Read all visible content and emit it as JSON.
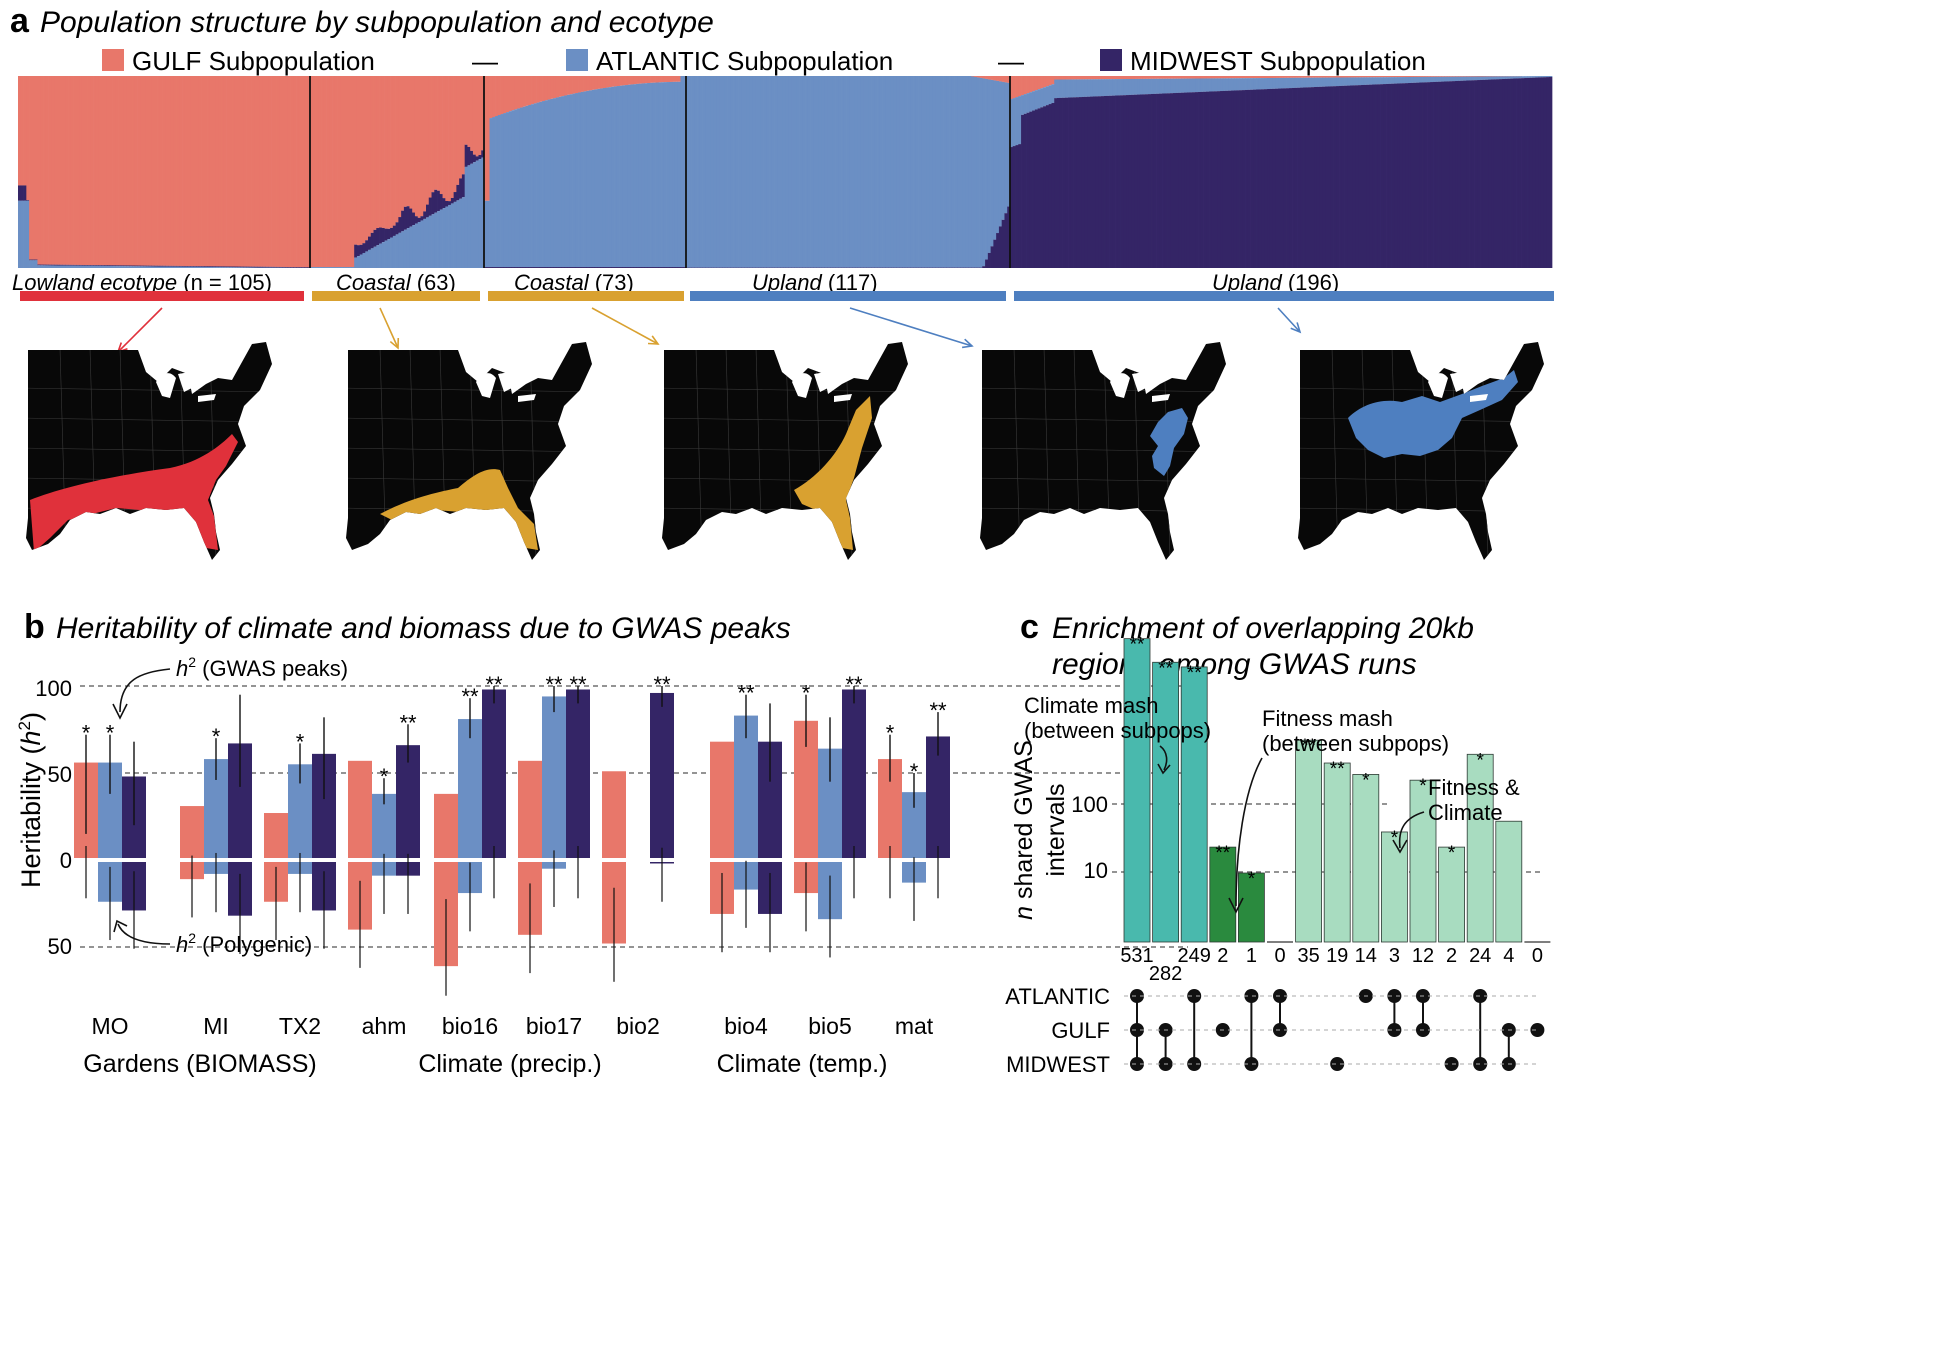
{
  "panel_a": {
    "letter": "a",
    "title": "Population structure by subpopulation and ecotype",
    "legend": [
      {
        "label": "GULF Subpopulation",
        "color": "#e8776a"
      },
      {
        "label": "ATLANTIC Subpopulation",
        "color": "#6b8fc4"
      },
      {
        "label": "MIDWEST Subpopulation",
        "color": "#342566"
      }
    ],
    "legend_separator": "—",
    "groups": [
      {
        "ecotype": "Lowland ecotype",
        "count_text": "(n = 105)",
        "color": "#e0313b",
        "map_region": "lowland"
      },
      {
        "ecotype": "Coastal",
        "count_text": "(63)",
        "color": "#d9a130",
        "map_region": "coastal-gulf"
      },
      {
        "ecotype": "Coastal",
        "count_text": "(73)",
        "color": "#d9a130",
        "map_region": "coastal-atlantic"
      },
      {
        "ecotype": "Upland",
        "count_text": "(117)",
        "color": "#4e7fc0",
        "map_region": "upland-atlantic"
      },
      {
        "ecotype": "Upland",
        "count_text": "(196)",
        "color": "#4e7fc0",
        "map_region": "upland-midwest"
      }
    ]
  },
  "panel_b": {
    "letter": "b",
    "title": "Heritability of climate and biomass due to GWAS peaks",
    "y_label_prefix": "Heritability (",
    "y_label_h": "h",
    "y_label_sup": "2",
    "y_label_suffix": ")",
    "top_ticks": [
      "100",
      "50",
      "0"
    ],
    "bottom_ticks": [
      "50"
    ],
    "annot_top": {
      "h": "h",
      "sup": "2",
      "text": " (GWAS peaks)"
    },
    "annot_bottom": {
      "h": "h",
      "sup": "2",
      "text": " (Polygenic)"
    },
    "group_labels": [
      "Gardens (BIOMASS)",
      "Climate (precip.)",
      "Climate (temp.)"
    ],
    "chart_data": {
      "type": "bar",
      "ylabel": "Heritability (h2)",
      "ylim_top": [
        0,
        100
      ],
      "ylim_bottom": [
        0,
        50
      ],
      "series_colors": {
        "GULF": "#e8776a",
        "ATLANTIC": "#6b8fc4",
        "MIDWEST": "#342566"
      },
      "categories": [
        "MO",
        "MI",
        "TX2",
        "ahm",
        "bio16",
        "bio17",
        "bio2",
        "bio4",
        "bio5",
        "mat"
      ],
      "traits": [
        {
          "name": "MO",
          "bars": [
            {
              "pop": "GULF",
              "top": 56,
              "bottom": 0,
              "err": [
                15,
                72
              ],
              "stars": "*"
            },
            {
              "pop": "ATLANTIC",
              "top": 56,
              "bottom": 24,
              "err": [
                38,
                72
              ],
              "stars": "*"
            },
            {
              "pop": "MIDWEST",
              "top": 48,
              "bottom": 29,
              "err": [
                20,
                68
              ],
              "stars": ""
            }
          ]
        },
        {
          "name": "MI",
          "bars": [
            {
              "pop": "GULF",
              "top": 31,
              "bottom": 11,
              "err": [],
              "stars": ""
            },
            {
              "pop": "ATLANTIC",
              "top": 58,
              "bottom": 8,
              "err": [
                46,
                70
              ],
              "stars": "*"
            },
            {
              "pop": "MIDWEST",
              "top": 67,
              "bottom": 32,
              "err": [
                42,
                95
              ],
              "stars": ""
            }
          ]
        },
        {
          "name": "TX2",
          "bars": [
            {
              "pop": "GULF",
              "top": 27,
              "bottom": 24,
              "err": [],
              "stars": ""
            },
            {
              "pop": "ATLANTIC",
              "top": 55,
              "bottom": 8,
              "err": [
                44,
                67
              ],
              "stars": "*"
            },
            {
              "pop": "MIDWEST",
              "top": 61,
              "bottom": 29,
              "err": [
                35,
                82
              ],
              "stars": ""
            }
          ]
        },
        {
          "name": "ahm",
          "bars": [
            {
              "pop": "GULF",
              "top": 57,
              "bottom": 40,
              "err": [],
              "stars": ""
            },
            {
              "pop": "ATLANTIC",
              "top": 38,
              "bottom": 9,
              "err": [
                32,
                47
              ],
              "stars": "*"
            },
            {
              "pop": "MIDWEST",
              "top": 66,
              "bottom": 9,
              "err": [
                56,
                78
              ],
              "stars": "**"
            }
          ]
        },
        {
          "name": "bio16",
          "bars": [
            {
              "pop": "GULF",
              "top": 38,
              "bottom": 61,
              "err": [],
              "stars": ""
            },
            {
              "pop": "ATLANTIC",
              "top": 81,
              "bottom": 19,
              "err": [
                70,
                93
              ],
              "stars": "**"
            },
            {
              "pop": "MIDWEST",
              "top": 98,
              "bottom": 0,
              "err": [
                90,
                100
              ],
              "stars": "**"
            }
          ]
        },
        {
          "name": "bio17",
          "bars": [
            {
              "pop": "GULF",
              "top": 57,
              "bottom": 43,
              "err": [],
              "stars": ""
            },
            {
              "pop": "ATLANTIC",
              "top": 94,
              "bottom": 5,
              "err": [
                85,
                100
              ],
              "stars": "**"
            },
            {
              "pop": "MIDWEST",
              "top": 98,
              "bottom": 0,
              "err": [
                90,
                100
              ],
              "stars": "**"
            }
          ]
        },
        {
          "name": "bio2",
          "bars": [
            {
              "pop": "GULF",
              "top": 51,
              "bottom": 48,
              "err": [],
              "stars": ""
            },
            {
              "pop": "ATLANTIC",
              "top": 0,
              "bottom": 0,
              "err": [],
              "stars": ""
            },
            {
              "pop": "MIDWEST",
              "top": 96,
              "bottom": 2,
              "err": [
                88,
                100
              ],
              "stars": "**"
            }
          ]
        },
        {
          "name": "bio4",
          "bars": [
            {
              "pop": "GULF",
              "top": 68,
              "bottom": 31,
              "err": [],
              "stars": ""
            },
            {
              "pop": "ATLANTIC",
              "top": 83,
              "bottom": 17,
              "err": [
                70,
                95
              ],
              "stars": "**"
            },
            {
              "pop": "MIDWEST",
              "top": 68,
              "bottom": 31,
              "err": [
                45,
                90
              ],
              "stars": ""
            }
          ]
        },
        {
          "name": "bio5",
          "bars": [
            {
              "pop": "GULF",
              "top": 80,
              "bottom": 19,
              "err": [
                65,
                95
              ],
              "stars": "*"
            },
            {
              "pop": "ATLANTIC",
              "top": 64,
              "bottom": 34,
              "err": [
                45,
                82
              ],
              "stars": ""
            },
            {
              "pop": "MIDWEST",
              "top": 98,
              "bottom": 0,
              "err": [
                90,
                100
              ],
              "stars": "**"
            }
          ]
        },
        {
          "name": "mat",
          "bars": [
            {
              "pop": "GULF",
              "top": 58,
              "bottom": 0,
              "err": [
                45,
                72
              ],
              "stars": "*"
            },
            {
              "pop": "ATLANTIC",
              "top": 39,
              "bottom": 13,
              "err": [
                30,
                50
              ],
              "stars": "*"
            },
            {
              "pop": "MIDWEST",
              "top": 71,
              "bottom": 0,
              "err": [
                60,
                85
              ],
              "stars": "**"
            }
          ]
        }
      ]
    }
  },
  "panel_c": {
    "letter": "c",
    "title_line1": "Enrichment of overlapping 20kb",
    "title_line2": "regions among GWAS runs",
    "y_label_italic": "n",
    "y_label_line1": " shared GWAS",
    "y_label_line2": "intervals",
    "y_ticks": [
      "100",
      "10"
    ],
    "annot_climate": [
      "Climate mash",
      "(between subpops)"
    ],
    "annot_fitness": [
      "Fitness mash",
      "(between subpops)"
    ],
    "annot_both": [
      "Fitness &",
      "Climate"
    ],
    "set_names": [
      "ATLANTIC",
      "GULF",
      "MIDWEST"
    ],
    "chart_data": {
      "type": "bar",
      "yscale": "log",
      "categories": [
        "1",
        "2",
        "3",
        "4",
        "5",
        "6",
        "7",
        "8",
        "9",
        "10",
        "11",
        "12",
        "13",
        "14",
        "15"
      ],
      "values": [
        531,
        282,
        249,
        2,
        1,
        0,
        35,
        19,
        14,
        3,
        12,
        2,
        24,
        4,
        0
      ],
      "value_labels": [
        "531",
        "282",
        "249",
        "2",
        "1",
        "0",
        "35",
        "19",
        "14",
        "3",
        "12",
        "2",
        "24",
        "4",
        "0"
      ],
      "stars": [
        "**",
        "**",
        "**",
        "**",
        "*",
        "",
        "**",
        "**",
        "*",
        "*",
        "*",
        "*",
        "*",
        "",
        ""
      ],
      "colors": [
        "#49b9ad",
        "#49b9ad",
        "#49b9ad",
        "#2a8a3e",
        "#2a8a3e",
        "#2a8a3e",
        "#a8dcc0",
        "#a8dcc0",
        "#a8dcc0",
        "#a8dcc0",
        "#a8dcc0",
        "#a8dcc0",
        "#a8dcc0",
        "#a8dcc0",
        "#a8dcc0"
      ],
      "membership": [
        [
          1,
          1,
          1
        ],
        [
          0,
          1,
          1
        ],
        [
          1,
          0,
          1
        ],
        [
          0,
          1,
          0
        ],
        [
          1,
          0,
          1
        ],
        [
          1,
          1,
          0
        ],
        [
          0,
          0,
          0
        ],
        [
          0,
          0,
          1
        ],
        [
          1,
          0,
          0
        ],
        [
          1,
          1,
          0
        ],
        [
          1,
          1,
          0
        ],
        [
          0,
          0,
          1
        ],
        [
          1,
          0,
          1
        ],
        [
          0,
          1,
          1
        ],
        [
          0,
          1,
          0
        ]
      ]
    }
  }
}
